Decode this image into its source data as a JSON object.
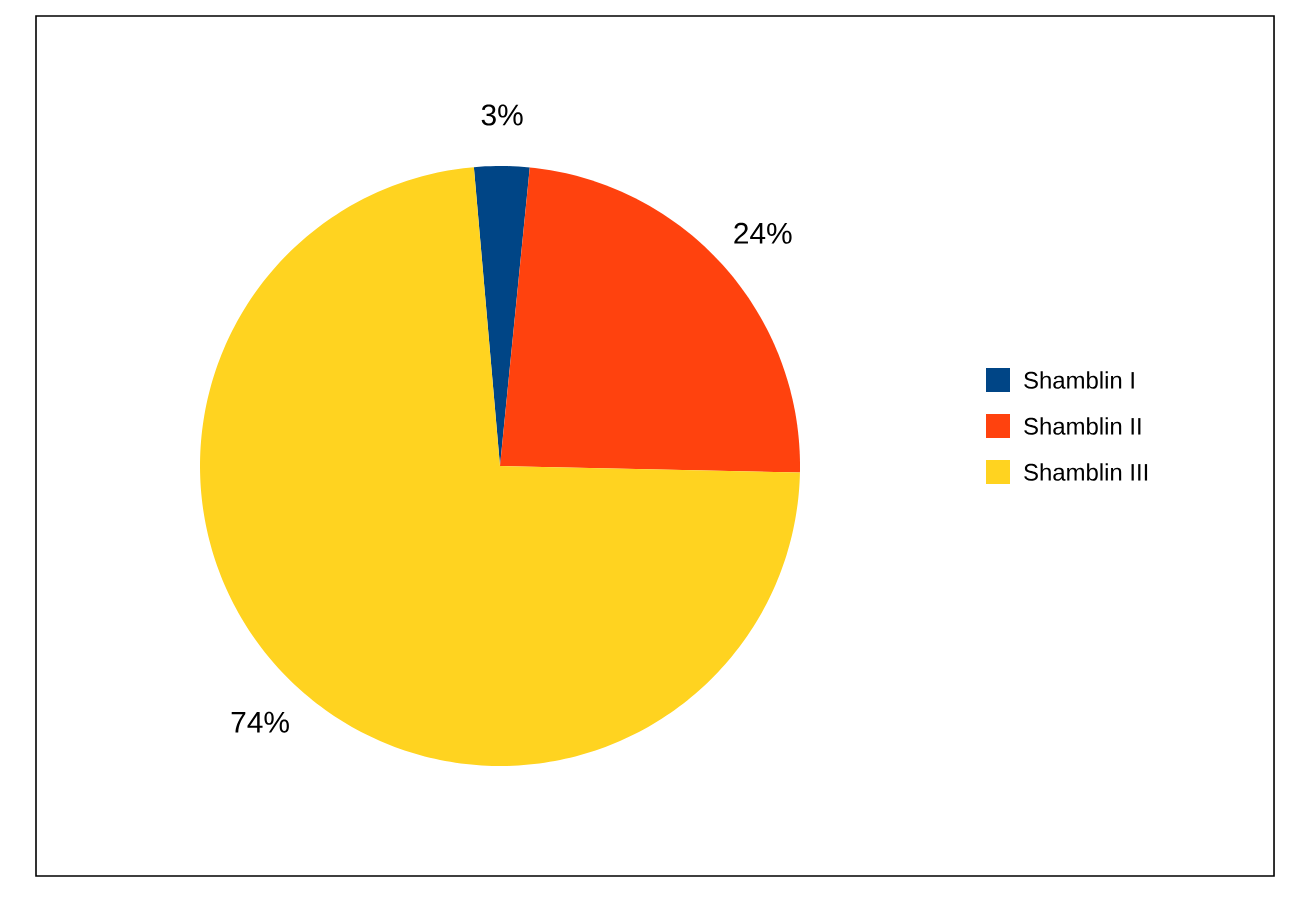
{
  "chart_data": {
    "type": "pie",
    "categories": [
      "Shamblin I",
      "Shamblin II",
      "Shamblin III"
    ],
    "values": [
      3,
      24,
      74
    ],
    "value_labels": [
      "3%",
      "24%",
      "74%"
    ],
    "colors": [
      "#004586",
      "#ff420e",
      "#ffd320"
    ],
    "legend": "right"
  }
}
